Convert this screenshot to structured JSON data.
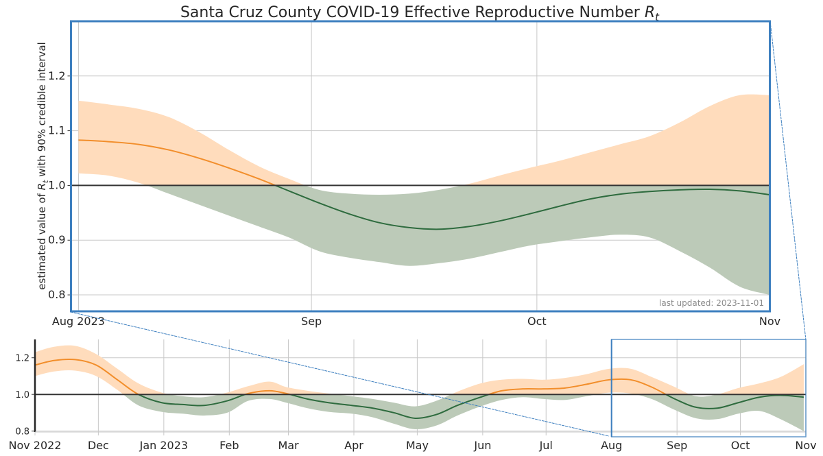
{
  "chart_data": [
    {
      "id": "main",
      "type": "line",
      "title": "Santa Cruz County COVID-19 Effective Reproductive Number",
      "title_symbol": "R",
      "title_symbol_sub": "t",
      "ylabel_prefix": "estimated value of ",
      "ylabel_symbol": "R",
      "ylabel_symbol_sub": "t",
      "ylabel_suffix": " with 90% credible interval",
      "xlabel": "",
      "xlim": [
        "2023-08-01",
        "2023-11-01"
      ],
      "ylim": [
        0.77,
        1.3
      ],
      "grid": true,
      "yticks": [
        0.8,
        0.9,
        1.0,
        1.1,
        1.2
      ],
      "ytick_labels": [
        "0.8",
        "0.9",
        "1.0",
        "1.1",
        "1.2"
      ],
      "xticks": [
        "2023-08-01",
        "2023-09-01",
        "2023-10-01",
        "2023-11-01"
      ],
      "xtick_labels": [
        "Aug 2023",
        "Sep",
        "Oct",
        "Nov"
      ],
      "reference_line": 1.0,
      "annotation": "last updated: 2023-11-01",
      "annotation_position": "bottom-right",
      "colors": {
        "above": "#f28e2b",
        "above_band": "#ffdcbc",
        "below": "#2e6b3e",
        "below_band": "#bccab8",
        "frame": "#3d7fbf",
        "reference": "#333333"
      },
      "series": {
        "x": [
          "2023-08-01",
          "2023-08-05",
          "2023-08-09",
          "2023-08-13",
          "2023-08-17",
          "2023-08-21",
          "2023-08-25",
          "2023-08-29",
          "2023-09-02",
          "2023-09-06",
          "2023-09-10",
          "2023-09-14",
          "2023-09-18",
          "2023-09-22",
          "2023-09-26",
          "2023-09-30",
          "2023-10-04",
          "2023-10-08",
          "2023-10-12",
          "2023-10-16",
          "2023-10-20",
          "2023-10-24",
          "2023-10-28",
          "2023-11-01"
        ],
        "median": [
          1.083,
          1.08,
          1.075,
          1.065,
          1.05,
          1.032,
          1.012,
          0.99,
          0.968,
          0.948,
          0.932,
          0.923,
          0.92,
          0.925,
          0.935,
          0.948,
          0.962,
          0.975,
          0.984,
          0.989,
          0.992,
          0.993,
          0.99,
          0.983
        ],
        "lower": [
          1.022,
          1.018,
          1.005,
          0.985,
          0.965,
          0.945,
          0.925,
          0.905,
          0.88,
          0.868,
          0.86,
          0.853,
          0.858,
          0.866,
          0.878,
          0.89,
          0.898,
          0.905,
          0.91,
          0.905,
          0.88,
          0.85,
          0.815,
          0.8
        ],
        "upper": [
          1.155,
          1.148,
          1.14,
          1.125,
          1.098,
          1.065,
          1.035,
          1.012,
          0.992,
          0.985,
          0.983,
          0.985,
          0.992,
          1.003,
          1.018,
          1.032,
          1.045,
          1.06,
          1.075,
          1.09,
          1.115,
          1.145,
          1.165,
          1.165
        ]
      }
    },
    {
      "id": "overview",
      "type": "line",
      "title": "",
      "xlim": [
        "2022-11-01",
        "2023-11-01"
      ],
      "ylim": [
        0.8,
        1.3
      ],
      "grid": true,
      "yticks": [
        0.8,
        1.0,
        1.2
      ],
      "ytick_labels": [
        "0.8",
        "1.0",
        "1.2"
      ],
      "xticks": [
        "2022-11-01",
        "2022-12-01",
        "2023-01-01",
        "2023-02-01",
        "2023-03-01",
        "2023-04-01",
        "2023-05-01",
        "2023-06-01",
        "2023-07-01",
        "2023-08-01",
        "2023-09-01",
        "2023-10-01",
        "2023-11-01"
      ],
      "xtick_labels": [
        "Nov 2022",
        "Dec",
        "Jan 2023",
        "Feb",
        "Mar",
        "Apr",
        "May",
        "Jun",
        "Jul",
        "Aug",
        "Sep",
        "Oct",
        "Nov"
      ],
      "reference_line": 1.0,
      "zoom_window": [
        "2023-08-01",
        "2023-11-01"
      ],
      "series": {
        "x": [
          "2022-11-01",
          "2022-11-10",
          "2022-11-20",
          "2022-11-30",
          "2022-12-10",
          "2022-12-20",
          "2022-12-31",
          "2023-01-10",
          "2023-01-20",
          "2023-01-31",
          "2023-02-10",
          "2023-02-20",
          "2023-02-28",
          "2023-03-10",
          "2023-03-20",
          "2023-03-31",
          "2023-04-10",
          "2023-04-20",
          "2023-04-30",
          "2023-05-10",
          "2023-05-20",
          "2023-05-31",
          "2023-06-10",
          "2023-06-20",
          "2023-06-30",
          "2023-07-10",
          "2023-07-20",
          "2023-07-31",
          "2023-08-10",
          "2023-08-20",
          "2023-08-31",
          "2023-09-10",
          "2023-09-20",
          "2023-09-30",
          "2023-10-10",
          "2023-10-20",
          "2023-10-31"
        ],
        "median": [
          1.16,
          1.185,
          1.19,
          1.16,
          1.08,
          1.0,
          0.955,
          0.945,
          0.94,
          0.965,
          1.005,
          1.02,
          1.005,
          0.975,
          0.955,
          0.94,
          0.925,
          0.9,
          0.87,
          0.89,
          0.94,
          0.985,
          1.02,
          1.03,
          1.03,
          1.035,
          1.055,
          1.08,
          1.08,
          1.04,
          0.975,
          0.93,
          0.925,
          0.955,
          0.985,
          0.995,
          0.985
        ],
        "lower": [
          1.1,
          1.125,
          1.13,
          1.1,
          1.025,
          0.94,
          0.905,
          0.895,
          0.885,
          0.9,
          0.965,
          0.975,
          0.955,
          0.925,
          0.905,
          0.895,
          0.875,
          0.84,
          0.81,
          0.83,
          0.885,
          0.935,
          0.97,
          0.985,
          0.975,
          0.97,
          0.99,
          1.01,
          1.005,
          0.975,
          0.915,
          0.87,
          0.865,
          0.895,
          0.91,
          0.865,
          0.8
        ],
        "upper": [
          1.23,
          1.26,
          1.265,
          1.22,
          1.14,
          1.06,
          1.01,
          0.99,
          0.985,
          1.01,
          1.045,
          1.07,
          1.04,
          1.02,
          1.005,
          0.99,
          0.975,
          0.955,
          0.935,
          0.965,
          1.015,
          1.06,
          1.08,
          1.085,
          1.08,
          1.09,
          1.11,
          1.14,
          1.14,
          1.095,
          1.04,
          0.99,
          1.0,
          1.035,
          1.06,
          1.095,
          1.165
        ]
      }
    }
  ]
}
